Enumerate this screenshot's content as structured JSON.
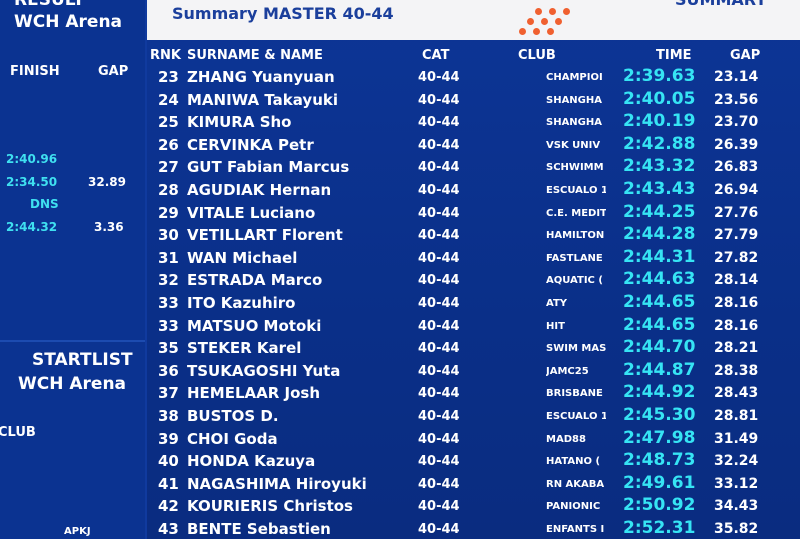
{
  "left_panel": {
    "result_title": "RESULT",
    "result_venue": "WCH Arena",
    "finish_header": "FINISH",
    "gap_header": "GAP",
    "finish_1": "2:40.96",
    "finish_2": "2:34.50",
    "gap_2": "32.89",
    "finish_3": "DNS",
    "finish_4": "2:44.32",
    "gap_4": "3.36",
    "startlist_title": "STARTLIST",
    "startlist_venue": "WCH Arena",
    "club_header": "CLUB",
    "club_value": "APKJ"
  },
  "header": {
    "subtitle": "Summary MASTER 40-44",
    "right_title": "SUMMARY"
  },
  "table": {
    "columns": [
      "RNK",
      "SURNAME & NAME",
      "CAT",
      "CLUB",
      "TIME",
      "GAP"
    ],
    "rows": [
      [
        "23",
        "ZHANG Yuanyuan",
        "40-44",
        "CHAMPIOI",
        "2:39.63",
        "23.14"
      ],
      [
        "24",
        "MANIWA Takayuki",
        "40-44",
        "SHANGHA",
        "2:40.05",
        "23.56"
      ],
      [
        "25",
        "KIMURA Sho",
        "40-44",
        "SHANGHA",
        "2:40.19",
        "23.70"
      ],
      [
        "26",
        "CERVINKA Petr",
        "40-44",
        "VSK UNIV",
        "2:42.88",
        "26.39"
      ],
      [
        "27",
        "GUT Fabian Marcus",
        "40-44",
        "SCHWIMM",
        "2:43.32",
        "26.83"
      ],
      [
        "28",
        "AGUDIAK Hernan",
        "40-44",
        "ESCUALO 1",
        "2:43.43",
        "26.94"
      ],
      [
        "29",
        "VITALE Luciano",
        "40-44",
        "C.E. MEDIT",
        "2:44.25",
        "27.76"
      ],
      [
        "30",
        "VETILLART Florent",
        "40-44",
        "HAMILTON",
        "2:44.28",
        "27.79"
      ],
      [
        "31",
        "WAN Michael",
        "40-44",
        "FASTLANE",
        "2:44.31",
        "27.82"
      ],
      [
        "32",
        "ESTRADA Marco",
        "40-44",
        "AQUATIC (",
        "2:44.63",
        "28.14"
      ],
      [
        "33",
        "ITO Kazuhiro",
        "40-44",
        "ATY",
        "2:44.65",
        "28.16"
      ],
      [
        "33",
        "MATSUO Motoki",
        "40-44",
        "HIT",
        "2:44.65",
        "28.16"
      ],
      [
        "35",
        "STEKER Karel",
        "40-44",
        "SWIM MAS",
        "2:44.70",
        "28.21"
      ],
      [
        "36",
        "TSUKAGOSHI Yuta",
        "40-44",
        "JAMC25",
        "2:44.87",
        "28.38"
      ],
      [
        "37",
        "HEMELAAR Josh",
        "40-44",
        "BRISBANE",
        "2:44.92",
        "28.43"
      ],
      [
        "38",
        "BUSTOS D.",
        "40-44",
        "ESCUALO 1",
        "2:45.30",
        "28.81"
      ],
      [
        "39",
        "CHOI Goda",
        "40-44",
        "MAD88",
        "2:47.98",
        "31.49"
      ],
      [
        "40",
        "HONDA Kazuya",
        "40-44",
        "HATANO (",
        "2:48.73",
        "32.24"
      ],
      [
        "41",
        "NAGASHIMA Hiroyuki",
        "40-44",
        "RN AKABA",
        "2:49.61",
        "33.12"
      ],
      [
        "42",
        "KOURIERIS Christos",
        "40-44",
        "PANIONIC",
        "2:50.92",
        "34.43"
      ],
      [
        "43",
        "BENTE Sebastien",
        "40-44",
        "ENFANTS I",
        "2:52.31",
        "35.82"
      ]
    ]
  }
}
